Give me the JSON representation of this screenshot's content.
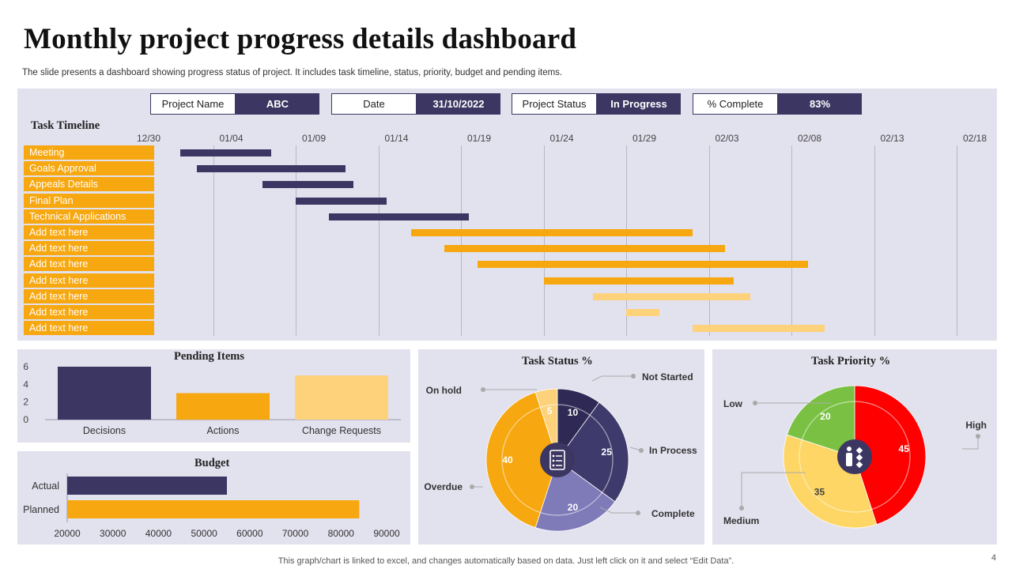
{
  "header": {
    "title": "Monthly project progress details dashboard",
    "subtitle": "The slide presents a dashboard showing progress status of project. It includes task timeline, status, priority, budget and pending items."
  },
  "info": [
    {
      "label": "Project Name",
      "value": "ABC"
    },
    {
      "label": "Date",
      "value": "31/10/2022"
    },
    {
      "label": "Project Status",
      "value": "In Progress"
    },
    {
      "label": "% Complete",
      "value": "83%"
    }
  ],
  "timeline": {
    "title": "Task Timeline",
    "ticks": [
      "12/30",
      "01/04",
      "01/09",
      "01/14",
      "01/19",
      "01/24",
      "01/29",
      "02/03",
      "02/08",
      "02/13",
      "02/18"
    ],
    "tasks": [
      "Meeting",
      "Goals Approval",
      "Appeals Details",
      "Final Plan",
      "Technical Applications",
      "Add text here",
      "Add text here",
      "Add text here",
      "Add text here",
      "Add text here",
      "Add text here",
      "Add text here"
    ]
  },
  "footer": {
    "note": "This graph/chart is linked to excel, and changes automatically based on data. Just left click on it and select “Edit Data”.",
    "page": "4"
  },
  "colors": {
    "navy": "#3c3663",
    "orange": "#f7a70f",
    "light_orange": "#fdd27b",
    "purple_mid": "#3f3a6c",
    "lavender": "#7f7ab8",
    "red": "#ff0000",
    "green": "#7ac143",
    "yellow": "#fdd665",
    "panel": "#e2e1ee"
  },
  "chart_data": [
    {
      "type": "bar",
      "orientation": "horizontal",
      "subtype": "gantt",
      "title": "Task Timeline",
      "xlim": [
        "12/30",
        "02/18"
      ],
      "tasks": [
        {
          "name": "Meeting",
          "start": "01/02",
          "days": 5.5,
          "color": "#3c3663"
        },
        {
          "name": "Goals Approval",
          "start": "01/03",
          "days": 9,
          "color": "#3c3663"
        },
        {
          "name": "Appeals Details",
          "start": "01/07",
          "days": 5.5,
          "color": "#3c3663"
        },
        {
          "name": "Final Plan",
          "start": "01/09",
          "days": 5.5,
          "color": "#3c3663"
        },
        {
          "name": "Technical Applications",
          "start": "01/11",
          "days": 8.5,
          "color": "#3c3663"
        },
        {
          "name": "Add text here",
          "start": "01/16",
          "days": 17,
          "color": "#f7a70f"
        },
        {
          "name": "Add text here",
          "start": "01/18",
          "days": 17,
          "color": "#f7a70f"
        },
        {
          "name": "Add text here",
          "start": "01/20",
          "days": 20,
          "color": "#f7a70f"
        },
        {
          "name": "Add text here",
          "start": "01/24",
          "days": 11.5,
          "color": "#f7a70f"
        },
        {
          "name": "Add text here",
          "start": "01/27",
          "days": 9.5,
          "color": "#fdd27b"
        },
        {
          "name": "Add text here",
          "start": "01/29",
          "days": 2,
          "color": "#fdd27b"
        },
        {
          "name": "Add text here",
          "start": "02/02",
          "days": 8,
          "color": "#fdd27b"
        }
      ]
    },
    {
      "type": "bar",
      "title": "Pending  Items",
      "categories": [
        "Decisions",
        "Actions",
        "Change Requests"
      ],
      "values": [
        6,
        3,
        5
      ],
      "colors": [
        "#3c3663",
        "#f7a70f",
        "#fdd27b"
      ],
      "ylim": [
        0,
        6
      ],
      "yticks": [
        "0",
        "2",
        "4",
        "6"
      ]
    },
    {
      "type": "bar",
      "orientation": "horizontal",
      "title": "Budget",
      "categories": [
        "Actual",
        "Planned"
      ],
      "values": [
        55000,
        84000
      ],
      "colors": [
        "#3c3663",
        "#f7a70f"
      ],
      "xlim": [
        20000,
        90000
      ],
      "xticks": [
        "20000",
        "30000",
        "40000",
        "50000",
        "60000",
        "70000",
        "80000",
        "90000"
      ]
    },
    {
      "type": "pie",
      "subtype": "doughnut",
      "title": "Task Status %",
      "slices": [
        {
          "label": "Not Started",
          "value": 10,
          "color": "#2f2a55"
        },
        {
          "label": "In Process",
          "value": 25,
          "color": "#3f3a6c"
        },
        {
          "label": "Complete",
          "value": 20,
          "color": "#7f7ab8"
        },
        {
          "label": "Overdue",
          "value": 40,
          "color": "#f7a70f"
        },
        {
          "label": "On hold",
          "value": 5,
          "color": "#fdd27b"
        }
      ]
    },
    {
      "type": "pie",
      "subtype": "doughnut",
      "title": "Task Priority   %",
      "slices": [
        {
          "label": "High",
          "value": 45,
          "color": "#ff0000"
        },
        {
          "label": "Medium",
          "value": 35,
          "color": "#fdd665"
        },
        {
          "label": "Low",
          "value": 20,
          "color": "#7ac143"
        }
      ]
    }
  ]
}
